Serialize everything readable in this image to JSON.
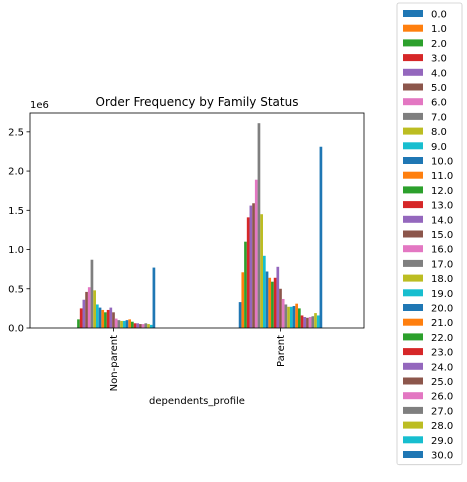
{
  "chart_data": {
    "type": "bar",
    "title": "Order Frequency by Family Status",
    "xlabel": "dependents_profile",
    "ylabel": "",
    "y_offset_label": "1e6",
    "y_scale": 1000000,
    "ylim": [
      0,
      2740000
    ],
    "y_ticks": [
      0.0,
      0.5,
      1.0,
      1.5,
      2.0,
      2.5
    ],
    "y_tick_labels": [
      "0.0",
      "0.5",
      "1.0",
      "1.5",
      "2.0",
      "2.5"
    ],
    "grid": false,
    "legend_position": "outside-right",
    "categories": [
      "Non-parent",
      "Parent"
    ],
    "series": [
      {
        "name": "0.0",
        "color": "#1f77b4",
        "values": [
          0,
          330000
        ]
      },
      {
        "name": "1.0",
        "color": "#ff7f0e",
        "values": [
          0,
          710000
        ]
      },
      {
        "name": "2.0",
        "color": "#2ca02c",
        "values": [
          110000,
          1100000
        ]
      },
      {
        "name": "3.0",
        "color": "#d62728",
        "values": [
          250000,
          1410000
        ]
      },
      {
        "name": "4.0",
        "color": "#9467bd",
        "values": [
          360000,
          1560000
        ]
      },
      {
        "name": "5.0",
        "color": "#8c564b",
        "values": [
          460000,
          1590000
        ]
      },
      {
        "name": "6.0",
        "color": "#e377c2",
        "values": [
          520000,
          1890000
        ]
      },
      {
        "name": "7.0",
        "color": "#7f7f7f",
        "values": [
          870000,
          2610000
        ]
      },
      {
        "name": "8.0",
        "color": "#bcbd22",
        "values": [
          480000,
          1450000
        ]
      },
      {
        "name": "9.0",
        "color": "#17becf",
        "values": [
          300000,
          920000
        ]
      },
      {
        "name": "10.0",
        "color": "#1f77b4",
        "values": [
          260000,
          720000
        ]
      },
      {
        "name": "11.0",
        "color": "#ff7f0e",
        "values": [
          230000,
          640000
        ]
      },
      {
        "name": "12.0",
        "color": "#2ca02c",
        "values": [
          200000,
          590000
        ]
      },
      {
        "name": "13.0",
        "color": "#d62728",
        "values": [
          230000,
          640000
        ]
      },
      {
        "name": "14.0",
        "color": "#9467bd",
        "values": [
          260000,
          780000
        ]
      },
      {
        "name": "15.0",
        "color": "#8c564b",
        "values": [
          200000,
          500000
        ]
      },
      {
        "name": "16.0",
        "color": "#e377c2",
        "values": [
          120000,
          370000
        ]
      },
      {
        "name": "17.0",
        "color": "#7f7f7f",
        "values": [
          100000,
          300000
        ]
      },
      {
        "name": "18.0",
        "color": "#bcbd22",
        "values": [
          90000,
          270000
        ]
      },
      {
        "name": "19.0",
        "color": "#17becf",
        "values": [
          90000,
          270000
        ]
      },
      {
        "name": "20.0",
        "color": "#1f77b4",
        "values": [
          100000,
          280000
        ]
      },
      {
        "name": "21.0",
        "color": "#ff7f0e",
        "values": [
          110000,
          310000
        ]
      },
      {
        "name": "22.0",
        "color": "#2ca02c",
        "values": [
          80000,
          250000
        ]
      },
      {
        "name": "23.0",
        "color": "#d62728",
        "values": [
          60000,
          160000
        ]
      },
      {
        "name": "24.0",
        "color": "#9467bd",
        "values": [
          60000,
          140000
        ]
      },
      {
        "name": "25.0",
        "color": "#8c564b",
        "values": [
          50000,
          130000
        ]
      },
      {
        "name": "26.0",
        "color": "#e377c2",
        "values": [
          50000,
          140000
        ]
      },
      {
        "name": "27.0",
        "color": "#7f7f7f",
        "values": [
          60000,
          150000
        ]
      },
      {
        "name": "28.0",
        "color": "#bcbd22",
        "values": [
          50000,
          190000
        ]
      },
      {
        "name": "29.0",
        "color": "#17becf",
        "values": [
          40000,
          160000
        ]
      },
      {
        "name": "30.0",
        "color": "#1f77b4",
        "values": [
          770000,
          2310000
        ]
      }
    ]
  }
}
